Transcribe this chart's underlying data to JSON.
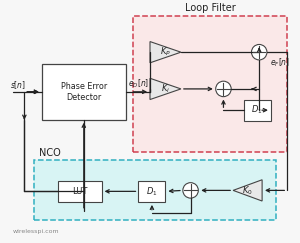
{
  "title": "Loop Filter",
  "nco_label": "NCO",
  "watermark": "wirelesspi.com",
  "bg_color": "#f7f7f7",
  "loop_filter_bg": "#fae8e8",
  "loop_filter_border": "#d04050",
  "nco_bg": "#d8f4f4",
  "nco_border": "#30b0c0",
  "box_color": "#e0e0e0",
  "box_edge": "#444444",
  "arrow_color": "#222222",
  "text_color": "#222222",
  "label_color": "#555555"
}
